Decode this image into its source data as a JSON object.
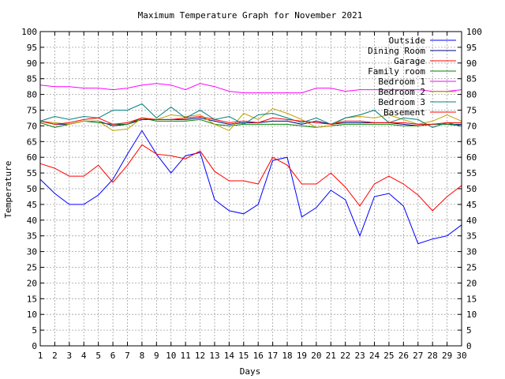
{
  "chart_data": {
    "type": "line",
    "title": "Maximum Temperature Graph for November 2021",
    "xlabel": "Days",
    "ylabel": "Temperature",
    "xlim": [
      1,
      30
    ],
    "ylim": [
      0,
      100
    ],
    "grid": true,
    "legend_position": "top-right",
    "x": [
      1,
      2,
      3,
      4,
      5,
      6,
      7,
      8,
      9,
      10,
      11,
      12,
      13,
      14,
      15,
      16,
      17,
      18,
      19,
      20,
      21,
      22,
      23,
      24,
      25,
      26,
      27,
      28,
      29,
      30
    ],
    "x_ticks": [
      "1",
      "2",
      "3",
      "4",
      "5",
      "6",
      "7",
      "8",
      "9",
      "10",
      "11",
      "12",
      "13",
      "14",
      "15",
      "16",
      "17",
      "18",
      "19",
      "20",
      "21",
      "22",
      "23",
      "24",
      "25",
      "26",
      "27",
      "28",
      "29",
      "30"
    ],
    "y_ticks": [
      "0",
      "5",
      "10",
      "15",
      "20",
      "25",
      "30",
      "35",
      "40",
      "45",
      "50",
      "55",
      "60",
      "65",
      "70",
      "75",
      "80",
      "85",
      "90",
      "95",
      "100"
    ],
    "series": [
      {
        "name": "Outside",
        "color": "#0000ff",
        "values": [
          53,
          48.5,
          45,
          45,
          48,
          53,
          61,
          68.5,
          61,
          55,
          60.5,
          61.5,
          46.5,
          43,
          42,
          45,
          59,
          60,
          41,
          44,
          49.5,
          46.5,
          35,
          47.5,
          48.5,
          44.5,
          32.5,
          34,
          35,
          38.5
        ]
      },
      {
        "name": "Dining Room",
        "color": "#000080",
        "values": [
          71.5,
          70.5,
          70.5,
          71.5,
          71.5,
          70,
          70.5,
          72,
          72,
          72,
          72,
          72.5,
          71.5,
          70.5,
          71,
          71,
          71.5,
          71.5,
          70.5,
          71.5,
          70.5,
          71,
          71,
          71,
          71,
          70.5,
          70,
          70.5,
          70.5,
          70.5
        ]
      },
      {
        "name": "Garage",
        "color": "#ff0000",
        "values": [
          58,
          56.5,
          54,
          54,
          57.5,
          52,
          57.5,
          64,
          61,
          60.5,
          59.5,
          62,
          55.5,
          52.5,
          52.5,
          51.5,
          60,
          57.5,
          51.5,
          51.5,
          55,
          50.5,
          44.5,
          51.5,
          54,
          51.5,
          48,
          43,
          47.5,
          51
        ]
      },
      {
        "name": "Family room",
        "color": "#008000",
        "values": [
          71,
          69.5,
          70.5,
          71.5,
          71,
          70.5,
          70.5,
          72.5,
          71.5,
          71.5,
          71.5,
          72,
          70.5,
          70,
          70.5,
          70.5,
          70.5,
          70.5,
          70,
          69.5,
          70,
          70.5,
          70.5,
          70.5,
          70.5,
          70,
          70,
          70.5,
          70.5,
          70
        ]
      },
      {
        "name": "Bedroom 1",
        "color": "#ff00ff",
        "values": [
          83,
          82.5,
          82.5,
          82,
          82,
          81.5,
          82,
          83,
          83.5,
          83,
          81.5,
          83.5,
          82.5,
          81,
          80.5,
          80.5,
          80.5,
          80.5,
          80.5,
          82,
          82,
          81,
          81.5,
          81.5,
          81.5,
          81.5,
          81.5,
          81,
          81,
          81.5
        ]
      },
      {
        "name": "Bedroom 2",
        "color": "#c0a000",
        "values": [
          71.5,
          71,
          70.5,
          71.5,
          71.5,
          68.5,
          69,
          72.5,
          72,
          73.5,
          73,
          73.5,
          70.5,
          68.5,
          74,
          72,
          75.5,
          74,
          72,
          69.5,
          70,
          72.5,
          73,
          72.5,
          73.5,
          72,
          70.5,
          71.5,
          73.5,
          71.5
        ]
      },
      {
        "name": "Bedroom 3",
        "color": "#008080",
        "values": [
          71.5,
          73,
          72,
          73,
          72.5,
          75,
          75,
          77,
          72.5,
          76,
          72.5,
          75,
          72,
          73,
          70.5,
          73.5,
          74,
          72.5,
          71,
          72.5,
          70.5,
          72.5,
          73.5,
          75,
          71,
          72.5,
          72,
          69.5,
          71,
          70
        ]
      },
      {
        "name": "Basement",
        "color": "#ff0000",
        "values": [
          71.5,
          70.5,
          71,
          72,
          72.5,
          70.5,
          71,
          72.5,
          72,
          72,
          72.5,
          73,
          72,
          71,
          71.5,
          71,
          72.5,
          72,
          71.5,
          71,
          70.5,
          71.5,
          71.5,
          71,
          71,
          71,
          70.5,
          70.5,
          71,
          71
        ]
      }
    ]
  }
}
